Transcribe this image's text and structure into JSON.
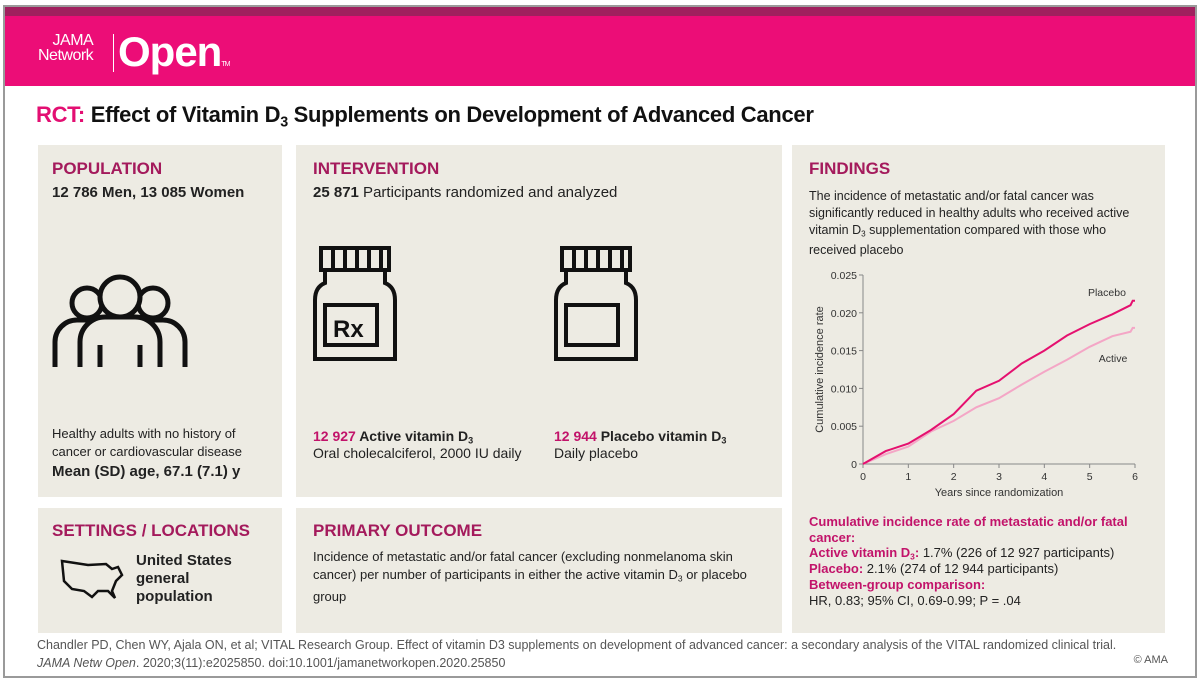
{
  "brand": {
    "line1": "JAMA",
    "line2": "Network",
    "name": "Open",
    "tm": "TM"
  },
  "title": {
    "prefix": "RCT:",
    "text_a": "Effect of Vitamin D",
    "sub": "3",
    "text_b": " Supplements on Development of Advanced Cancer"
  },
  "population": {
    "heading": "POPULATION",
    "counts": "12 786 Men, 13 085 Women",
    "desc": "Healthy adults with no history of cancer or cardiovascular disease",
    "age": "Mean (SD) age, 67.1 (7.1) y"
  },
  "intervention": {
    "heading": "INTERVENTION",
    "count": "25 871",
    "count_label": " Participants randomized and analyzed",
    "active": {
      "n": "12 927",
      "label": " Active vitamin D",
      "sub": "3",
      "detail": "Oral cholecalciferol, 2000 IU daily"
    },
    "placebo": {
      "n": "12 944",
      "label": " Placebo vitamin D",
      "sub": "3",
      "detail": "Daily placebo"
    },
    "rx_label": "Rx"
  },
  "settings": {
    "heading": "SETTINGS / LOCATIONS",
    "text": "United States general population"
  },
  "outcome": {
    "heading": "PRIMARY OUTCOME",
    "text_a": "Incidence of metastatic and/or fatal cancer (excluding nonmelanoma skin cancer) per number of participants in either the active vitamin D",
    "sub": "3",
    "text_b": " or placebo group"
  },
  "findings": {
    "heading": "FINDINGS",
    "text_a": "The incidence of metastatic and/or fatal cancer was significantly reduced in healthy adults who received active vitamin D",
    "sub": "3",
    "text_b": " supplementation compared with those who received placebo",
    "rate_heading": "Cumulative incidence rate of metastatic and/or fatal cancer:",
    "active_label": "Active vitamin D",
    "active_sub": "3",
    "active_colon": ":",
    "active_value": " 1.7% (226 of 12 927 participants)",
    "placebo_label": "Placebo:",
    "placebo_value": " 2.1% (274 of 12 944 participants)",
    "comparison_label": "Between-group comparison:",
    "comparison_value": "HR, 0.83; 95% CI, 0.69-0.99; P = .04"
  },
  "chart_data": {
    "type": "line",
    "xlabel": "Years since randomization",
    "ylabel": "Cumulative incidence rate",
    "xlim": [
      0,
      6
    ],
    "ylim": [
      0,
      0.025
    ],
    "xticks": [
      "0",
      "1",
      "2",
      "3",
      "4",
      "5",
      "6"
    ],
    "yticks": [
      "0",
      "0.005",
      "0.010",
      "0.015",
      "0.020",
      "0.025"
    ],
    "grid": false,
    "series": [
      {
        "name": "Placebo",
        "color": "#e5106f",
        "x": [
          0,
          0.5,
          1,
          1.5,
          2,
          2.5,
          3,
          3.5,
          4,
          4.5,
          5,
          5.5,
          5.9,
          5.95,
          6
        ],
        "y": [
          0,
          0.0017,
          0.0027,
          0.0045,
          0.0066,
          0.0097,
          0.011,
          0.0133,
          0.015,
          0.017,
          0.0185,
          0.0198,
          0.021,
          0.0216,
          0.0216
        ]
      },
      {
        "name": "Active",
        "color": "#f4a6c6",
        "x": [
          0,
          0.5,
          1,
          1.5,
          2,
          2.5,
          3,
          3.5,
          4,
          4.5,
          5,
          5.5,
          5.9,
          5.95,
          6
        ],
        "y": [
          0,
          0.0013,
          0.0023,
          0.0043,
          0.0057,
          0.0075,
          0.0087,
          0.0105,
          0.0122,
          0.0138,
          0.0155,
          0.0169,
          0.0175,
          0.018,
          0.018
        ]
      }
    ]
  },
  "footer": {
    "line1": "Chandler PD, Chen WY, Ajala ON, et al; VITAL Research Group. Effect of vitamin D3 supplements on development of advanced cancer: a secondary analysis of the VITAL randomized clinical trial.",
    "journal": "JAMA Netw Open",
    "line2": ". 2020;3(11):e2025850. doi:10.1001/jamanetworkopen.2020.25850",
    "copyright": "© AMA"
  }
}
